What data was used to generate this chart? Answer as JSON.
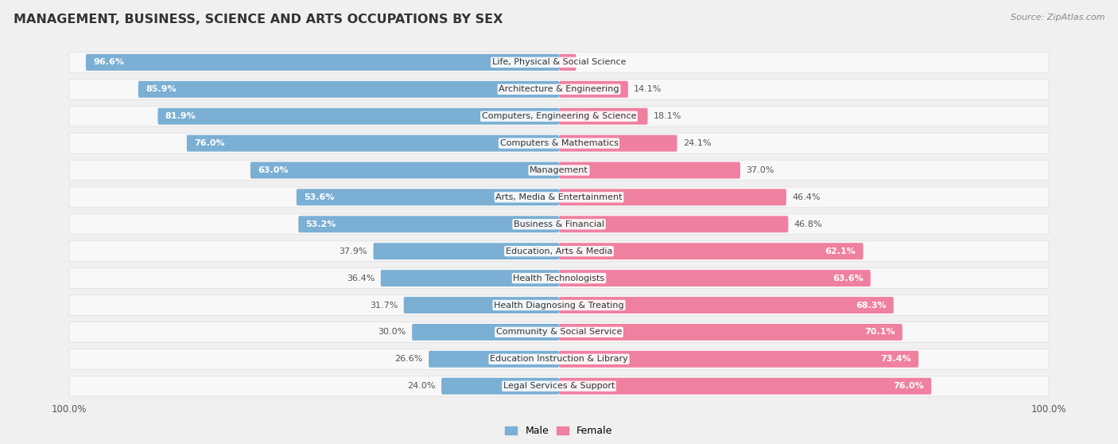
{
  "title": "MANAGEMENT, BUSINESS, SCIENCE AND ARTS OCCUPATIONS BY SEX",
  "source": "Source: ZipAtlas.com",
  "categories": [
    "Life, Physical & Social Science",
    "Architecture & Engineering",
    "Computers, Engineering & Science",
    "Computers & Mathematics",
    "Management",
    "Arts, Media & Entertainment",
    "Business & Financial",
    "Education, Arts & Media",
    "Health Technologists",
    "Health Diagnosing & Treating",
    "Community & Social Service",
    "Education Instruction & Library",
    "Legal Services & Support"
  ],
  "male_pct": [
    96.6,
    85.9,
    81.9,
    76.0,
    63.0,
    53.6,
    53.2,
    37.9,
    36.4,
    31.7,
    30.0,
    26.6,
    24.0
  ],
  "female_pct": [
    3.5,
    14.1,
    18.1,
    24.1,
    37.0,
    46.4,
    46.8,
    62.1,
    63.6,
    68.3,
    70.1,
    73.4,
    76.0
  ],
  "male_color": "#7bafd4",
  "female_color": "#f080a0",
  "bg_color": "#f0f0f0",
  "bar_bg_color": "#ffffff",
  "row_bg_color": "#e8e8e8",
  "title_fontsize": 11.5,
  "label_fontsize": 8.0,
  "tick_fontsize": 8.5,
  "legend_fontsize": 9,
  "source_fontsize": 8
}
